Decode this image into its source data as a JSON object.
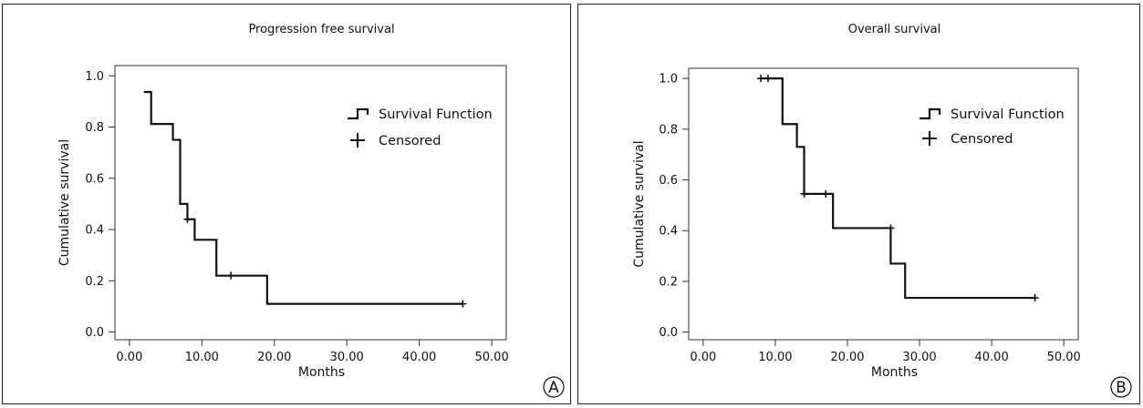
{
  "chart_data": [
    {
      "type": "line",
      "panel": "A",
      "title": "Progression free survival",
      "xlabel": "Months",
      "ylabel": "Cumulative survival",
      "xlim": [
        -2,
        52
      ],
      "ylim": [
        -0.03,
        1.04
      ],
      "x_ticks": [
        0,
        10,
        20,
        30,
        40,
        50
      ],
      "x_tick_labels": [
        "0.00",
        "10.00",
        "20.00",
        "30.00",
        "40.00",
        "50.00"
      ],
      "y_ticks": [
        0.0,
        0.2,
        0.4,
        0.6,
        0.8,
        1.0
      ],
      "y_tick_labels": [
        "0.0",
        "0.2",
        "0.4",
        "0.6",
        "0.8",
        "1.0"
      ],
      "legend": [
        "Survival Function",
        "Censored"
      ],
      "legend_position": "top-right",
      "grid": false,
      "series": [
        {
          "name": "Survival Function",
          "start_y": 0.937,
          "x_start": 2,
          "steps": [
            {
              "x": 3,
              "y": 0.812
            },
            {
              "x": 6,
              "y": 0.75
            },
            {
              "x": 7,
              "y": 0.5
            },
            {
              "x": 8,
              "y": 0.44
            },
            {
              "x": 9,
              "y": 0.36
            },
            {
              "x": 12,
              "y": 0.22
            },
            {
              "x": 19,
              "y": 0.11
            }
          ],
          "x_end": 46,
          "censored": [
            {
              "x": 8,
              "y": 0.44
            },
            {
              "x": 14,
              "y": 0.22
            },
            {
              "x": 46,
              "y": 0.11
            }
          ]
        }
      ],
      "panel_label": "A"
    },
    {
      "type": "line",
      "panel": "B",
      "title": "Overall survival",
      "xlabel": "Months",
      "ylabel": "Cumulative survival",
      "xlim": [
        -2,
        52
      ],
      "ylim": [
        -0.03,
        1.04
      ],
      "x_ticks": [
        0,
        10,
        20,
        30,
        40,
        50
      ],
      "x_tick_labels": [
        "0.00",
        "10.00",
        "20.00",
        "30.00",
        "40.00",
        "50.00"
      ],
      "y_ticks": [
        0.0,
        0.2,
        0.4,
        0.6,
        0.8,
        1.0
      ],
      "y_tick_labels": [
        "0.0",
        "0.2",
        "0.4",
        "0.6",
        "0.8",
        "1.0"
      ],
      "legend": [
        "Survival Function",
        "Censored"
      ],
      "legend_position": "top-right",
      "grid": false,
      "series": [
        {
          "name": "Survival Function",
          "start_y": 1.0,
          "x_start": 8,
          "steps": [
            {
              "x": 11,
              "y": 0.82
            },
            {
              "x": 13,
              "y": 0.73
            },
            {
              "x": 14,
              "y": 0.545
            },
            {
              "x": 18,
              "y": 0.41
            },
            {
              "x": 26,
              "y": 0.27
            },
            {
              "x": 28,
              "y": 0.135
            }
          ],
          "x_end": 46,
          "censored": [
            {
              "x": 8,
              "y": 1.0
            },
            {
              "x": 9,
              "y": 1.0
            },
            {
              "x": 14,
              "y": 0.545
            },
            {
              "x": 17,
              "y": 0.545
            },
            {
              "x": 26,
              "y": 0.41
            },
            {
              "x": 46,
              "y": 0.135
            }
          ]
        }
      ],
      "panel_label": "B"
    }
  ]
}
